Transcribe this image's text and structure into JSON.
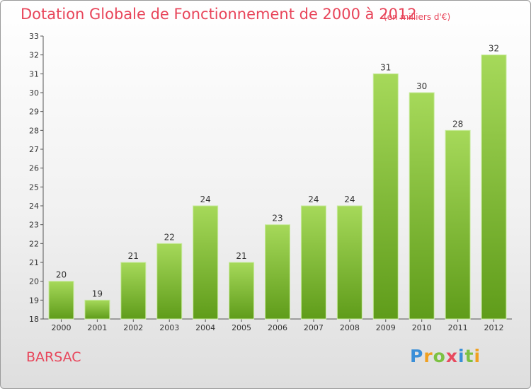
{
  "chart_data": {
    "type": "bar",
    "title": "Dotation Globale de Fonctionnement de 2000 à 2012",
    "subtitle": "(en milliers d'€)",
    "categories": [
      "2000",
      "2001",
      "2002",
      "2003",
      "2004",
      "2005",
      "2006",
      "2007",
      "2008",
      "2009",
      "2010",
      "2011",
      "2012"
    ],
    "values": [
      20,
      19,
      21,
      22,
      24,
      21,
      23,
      24,
      24,
      31,
      30,
      28,
      32
    ],
    "ylim": [
      18,
      33
    ],
    "yticks": [
      18,
      19,
      20,
      21,
      22,
      23,
      24,
      25,
      26,
      27,
      28,
      29,
      30,
      31,
      32,
      33
    ],
    "grid": false,
    "data_labels": true,
    "colors": {
      "bar_top": "#a6d95a",
      "bar_bottom": "#5f9c1a",
      "title": "#e8455a"
    }
  },
  "place_name": "BARSAC",
  "logo": {
    "letters": [
      "P",
      "r",
      "o",
      "x",
      "i",
      "t",
      "i"
    ],
    "colors": [
      "#3a8fd8",
      "#f0a020",
      "#7cc142",
      "#e84a5f",
      "#3a8fd8",
      "#7cc142",
      "#f0a020"
    ]
  }
}
